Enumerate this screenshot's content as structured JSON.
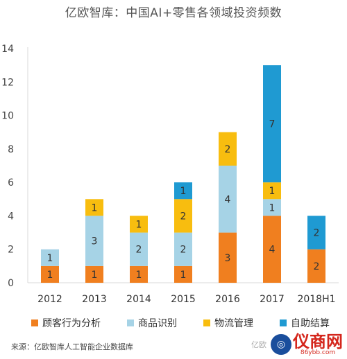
{
  "title": "亿欧智库：中国AI+零售各领域投资频数",
  "chart_data": {
    "type": "bar",
    "stacked": true,
    "categories": [
      "2012",
      "2013",
      "2014",
      "2015",
      "2016",
      "2017",
      "2018H1"
    ],
    "series": [
      {
        "name": "顾客行为分析",
        "color": "#f07f1f",
        "values": [
          1,
          1,
          1,
          1,
          3,
          4,
          2
        ]
      },
      {
        "name": "商品识别",
        "color": "#a6d3e6",
        "values": [
          1,
          3,
          2,
          2,
          4,
          1,
          0
        ]
      },
      {
        "name": "物流管理",
        "color": "#f8bd0f",
        "values": [
          0,
          1,
          1,
          2,
          2,
          1,
          0
        ]
      },
      {
        "name": "自助结算",
        "color": "#1f9ad2",
        "values": [
          0,
          0,
          0,
          1,
          0,
          7,
          2
        ]
      }
    ],
    "yticks": [
      "0",
      "2",
      "4",
      "6",
      "8",
      "10",
      "12",
      "14"
    ],
    "ylim": [
      0,
      14
    ],
    "grid": false,
    "legend_position": "bottom"
  },
  "source": "来源：亿欧智库人工智能企业数据库",
  "watermark": {
    "prefix": "亿欧",
    "logo_text": "仪商网",
    "logo_url": "86ybb.com"
  }
}
